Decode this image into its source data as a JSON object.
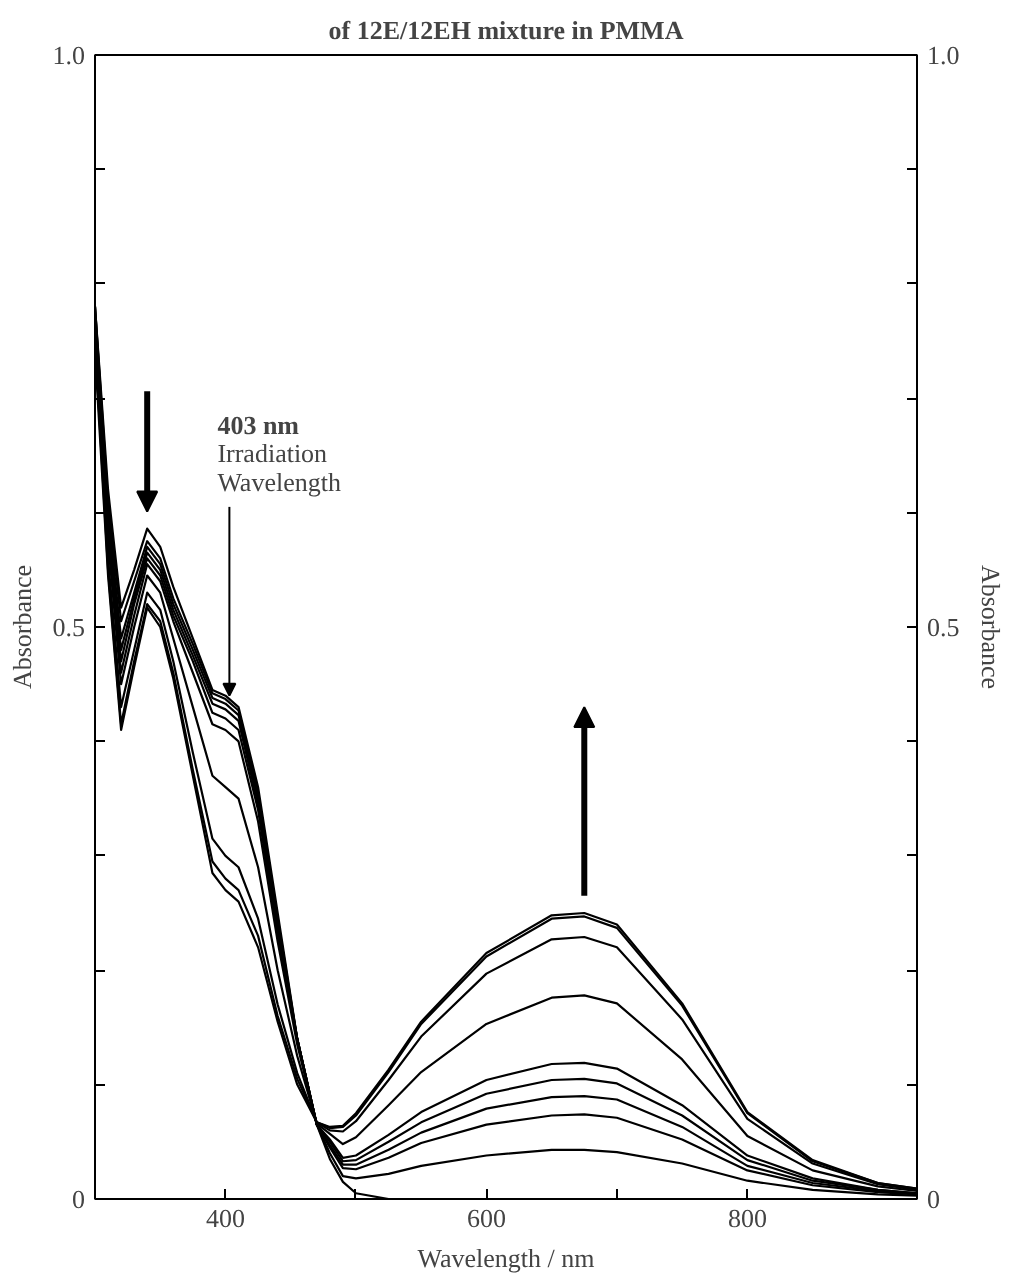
{
  "chart_data": {
    "type": "line",
    "title": "of 12E/12EH mixture in PMMA",
    "xlabel": "Wavelength / nm",
    "ylabel": "Absorbance",
    "y2label": "Absorbance",
    "x": [
      300,
      310,
      320,
      330,
      340,
      350,
      360,
      375,
      390,
      400,
      410,
      425,
      440,
      455,
      470,
      480,
      490,
      500,
      525,
      550,
      600,
      650,
      675,
      700,
      750,
      800,
      850,
      900,
      930
    ],
    "series": [
      {
        "color": "#000000",
        "values": [
          0.78,
          0.62,
          0.517,
          0.55,
          0.586,
          0.57,
          0.535,
          0.49,
          0.445,
          0.44,
          0.43,
          0.36,
          0.25,
          0.14,
          0.065,
          0.035,
          0.015,
          0.005,
          0,
          0,
          0,
          0,
          0,
          0,
          0,
          0,
          0,
          0,
          0
        ]
      },
      {
        "color": "#000000",
        "values": [
          0.78,
          0.61,
          0.505,
          0.54,
          0.575,
          0.56,
          0.525,
          0.485,
          0.442,
          0.437,
          0.427,
          0.355,
          0.245,
          0.14,
          0.065,
          0.04,
          0.02,
          0.018,
          0.022,
          0.029,
          0.038,
          0.043,
          0.043,
          0.041,
          0.031,
          0.016,
          0.008,
          0.004,
          0.003
        ]
      },
      {
        "color": "#000000",
        "values": [
          0.78,
          0.6,
          0.49,
          0.53,
          0.57,
          0.555,
          0.52,
          0.48,
          0.438,
          0.433,
          0.423,
          0.35,
          0.24,
          0.14,
          0.065,
          0.045,
          0.027,
          0.026,
          0.036,
          0.049,
          0.065,
          0.073,
          0.074,
          0.071,
          0.052,
          0.025,
          0.012,
          0.006,
          0.004
        ]
      },
      {
        "color": "#000000",
        "values": [
          0.77,
          0.595,
          0.48,
          0.525,
          0.565,
          0.55,
          0.515,
          0.475,
          0.433,
          0.428,
          0.418,
          0.345,
          0.235,
          0.14,
          0.065,
          0.047,
          0.03,
          0.03,
          0.043,
          0.058,
          0.079,
          0.089,
          0.09,
          0.087,
          0.063,
          0.029,
          0.014,
          0.007,
          0.005
        ]
      },
      {
        "color": "#000000",
        "values": [
          0.77,
          0.59,
          0.47,
          0.52,
          0.56,
          0.545,
          0.51,
          0.47,
          0.425,
          0.42,
          0.41,
          0.34,
          0.23,
          0.14,
          0.065,
          0.05,
          0.033,
          0.034,
          0.05,
          0.067,
          0.092,
          0.104,
          0.105,
          0.101,
          0.073,
          0.034,
          0.016,
          0.008,
          0.005
        ]
      },
      {
        "color": "#000000",
        "values": [
          0.76,
          0.58,
          0.46,
          0.51,
          0.555,
          0.54,
          0.505,
          0.46,
          0.415,
          0.41,
          0.4,
          0.33,
          0.225,
          0.135,
          0.065,
          0.052,
          0.036,
          0.038,
          0.056,
          0.076,
          0.104,
          0.118,
          0.119,
          0.114,
          0.082,
          0.038,
          0.018,
          0.008,
          0.005
        ]
      },
      {
        "color": "#000000",
        "values": [
          0.76,
          0.575,
          0.45,
          0.5,
          0.545,
          0.53,
          0.49,
          0.43,
          0.37,
          0.36,
          0.35,
          0.29,
          0.2,
          0.125,
          0.066,
          0.057,
          0.048,
          0.054,
          0.082,
          0.111,
          0.153,
          0.176,
          0.178,
          0.171,
          0.122,
          0.055,
          0.025,
          0.011,
          0.007
        ]
      },
      {
        "color": "#000000",
        "values": [
          0.75,
          0.56,
          0.43,
          0.48,
          0.53,
          0.515,
          0.47,
          0.39,
          0.315,
          0.3,
          0.29,
          0.245,
          0.17,
          0.11,
          0.067,
          0.06,
          0.059,
          0.068,
          0.104,
          0.142,
          0.197,
          0.227,
          0.229,
          0.22,
          0.157,
          0.07,
          0.031,
          0.013,
          0.008
        ]
      },
      {
        "color": "#000000",
        "values": [
          0.75,
          0.55,
          0.415,
          0.47,
          0.52,
          0.505,
          0.46,
          0.375,
          0.295,
          0.28,
          0.27,
          0.23,
          0.16,
          0.105,
          0.067,
          0.062,
          0.063,
          0.073,
          0.111,
          0.153,
          0.212,
          0.245,
          0.247,
          0.237,
          0.169,
          0.075,
          0.033,
          0.014,
          0.009
        ]
      },
      {
        "color": "#000000",
        "values": [
          0.74,
          0.545,
          0.41,
          0.465,
          0.517,
          0.5,
          0.455,
          0.37,
          0.285,
          0.27,
          0.26,
          0.22,
          0.155,
          0.1,
          0.067,
          0.063,
          0.064,
          0.075,
          0.113,
          0.155,
          0.215,
          0.248,
          0.25,
          0.24,
          0.171,
          0.076,
          0.034,
          0.014,
          0.009
        ]
      }
    ],
    "xlim": [
      300,
      930
    ],
    "ylim": [
      0,
      1
    ],
    "xticks": [
      400,
      {
        "value": 500,
        "label": null
      },
      600,
      {
        "value": 700,
        "label": null
      },
      800
    ],
    "yticks": [
      {
        "value": 0,
        "label": "0"
      },
      {
        "value": 0.1,
        "label": null
      },
      {
        "value": 0.2,
        "label": null
      },
      {
        "value": 0.3,
        "label": null
      },
      {
        "value": 0.4,
        "label": null
      },
      {
        "value": 0.5,
        "label": "0.5"
      },
      {
        "value": 0.6,
        "label": null
      },
      {
        "value": 0.7,
        "label": null
      },
      {
        "value": 0.8,
        "label": null
      },
      {
        "value": 0.9,
        "label": null
      },
      {
        "value": 1,
        "label": "1.0"
      }
    ],
    "y2lim": [
      0,
      1
    ],
    "y2ticks": [
      {
        "value": 0,
        "label": "0"
      },
      {
        "value": 0.1,
        "label": null
      },
      {
        "value": 0.2,
        "label": null
      },
      {
        "value": 0.3,
        "label": null
      },
      {
        "value": 0.4,
        "label": null
      },
      {
        "value": 0.5,
        "label": "0.5"
      },
      {
        "value": 0.6,
        "label": null
      },
      {
        "value": 0.7,
        "label": null
      },
      {
        "value": 0.8,
        "label": null
      },
      {
        "value": 0.9,
        "label": null
      },
      {
        "value": 1,
        "label": "1.0"
      }
    ],
    "annotations": [
      {
        "text": "403 nm\nIrradiation\nWavelength",
        "x": 403,
        "y": 0.44
      }
    ],
    "grid": false
  }
}
